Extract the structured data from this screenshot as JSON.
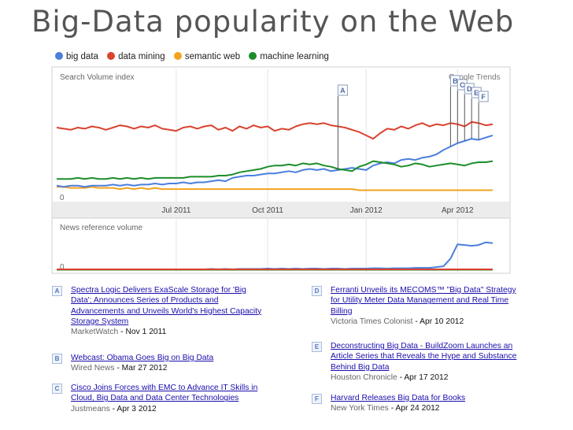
{
  "title": "Big-Data popularity on the Web",
  "colors": {
    "big_data": "#4a7fdc",
    "data_mining": "#d9432f",
    "semantic_web": "#f2a320",
    "machine_learning": "#1d8d2a",
    "grid": "#e4e4e4",
    "axis_band": "#ececec"
  },
  "chart_data": [
    {
      "type": "line",
      "ylabel": "Search Volume index",
      "watermark": "Google Trends",
      "ytick_zero": "0",
      "x_tick_labels": [
        "Jul 2011",
        "Oct 2011",
        "Jan 2012",
        "Apr 2012"
      ],
      "x_tick_weeks": [
        17,
        30,
        44,
        57
      ],
      "ylim": [
        0,
        100
      ],
      "x_weeks": 62,
      "x_start": "2011-03-06",
      "series": [
        {
          "name": "big data",
          "key": "big_data",
          "values": [
            10,
            9,
            10,
            10,
            9,
            10,
            10,
            10,
            11,
            10,
            11,
            10,
            11,
            11,
            12,
            11,
            12,
            12,
            13,
            12,
            13,
            13,
            14,
            15,
            14,
            17,
            18,
            19,
            19,
            20,
            21,
            21,
            22,
            23,
            22,
            24,
            25,
            24,
            25,
            23,
            24,
            25,
            26,
            25,
            24,
            28,
            30,
            31,
            30,
            33,
            34,
            33,
            35,
            36,
            38,
            42,
            45,
            48,
            50,
            52,
            51,
            53,
            55
          ]
        },
        {
          "name": "data mining",
          "key": "data_mining",
          "values": [
            62,
            61,
            60,
            62,
            61,
            63,
            62,
            60,
            62,
            64,
            63,
            61,
            63,
            62,
            64,
            61,
            60,
            59,
            62,
            63,
            61,
            63,
            64,
            60,
            62,
            59,
            63,
            61,
            64,
            62,
            63,
            59,
            61,
            60,
            63,
            65,
            66,
            65,
            66,
            64,
            63,
            62,
            60,
            58,
            55,
            52,
            57,
            61,
            60,
            63,
            61,
            64,
            66,
            63,
            65,
            64,
            66,
            65,
            63,
            67,
            66,
            64,
            65
          ]
        },
        {
          "name": "semantic web",
          "key": "semantic_web",
          "values": [
            9,
            9,
            8,
            8,
            8,
            9,
            8,
            8,
            8,
            7,
            8,
            7,
            8,
            7,
            8,
            7,
            7,
            7,
            7,
            7,
            7,
            7,
            7,
            7,
            7,
            7,
            7,
            7,
            7,
            7,
            7,
            7,
            7,
            7,
            7,
            7,
            7,
            7,
            7,
            7,
            7,
            7,
            7,
            6,
            6,
            6,
            6,
            6,
            6,
            6,
            6,
            6,
            6,
            6,
            6,
            6,
            6,
            6,
            6,
            6,
            6,
            6,
            6
          ]
        },
        {
          "name": "machine learning",
          "key": "machine_learning",
          "values": [
            16,
            16,
            16,
            17,
            16,
            17,
            16,
            16,
            17,
            16,
            17,
            16,
            17,
            16,
            17,
            17,
            17,
            17,
            17,
            18,
            18,
            18,
            18,
            19,
            19,
            20,
            22,
            23,
            24,
            25,
            27,
            28,
            28,
            29,
            28,
            30,
            29,
            30,
            28,
            27,
            25,
            24,
            23,
            27,
            29,
            32,
            31,
            30,
            29,
            27,
            28,
            30,
            29,
            27,
            28,
            29,
            30,
            29,
            28,
            30,
            31,
            31,
            32
          ]
        }
      ]
    },
    {
      "type": "line",
      "ylabel": "News reference volume",
      "ytick_zero": "0",
      "ylim": [
        0,
        100
      ],
      "series": [
        {
          "name": "big data",
          "key": "big_data",
          "values": [
            1,
            1,
            1,
            1,
            2,
            1,
            2,
            1,
            2,
            2,
            1,
            1,
            2,
            1,
            2,
            1,
            2,
            2,
            2,
            1,
            2,
            2,
            3,
            2,
            3,
            2,
            3,
            3,
            3,
            3,
            4,
            3,
            4,
            3,
            4,
            3,
            4,
            4,
            3,
            4,
            4,
            3,
            4,
            4,
            4,
            5,
            5,
            4,
            5,
            5,
            5,
            6,
            6,
            6,
            8,
            10,
            30,
            67,
            65,
            63,
            65,
            72,
            70
          ]
        },
        {
          "name": "data mining",
          "key": "data_mining",
          "values": [
            2,
            2,
            2,
            2,
            2,
            2,
            2,
            2,
            2,
            2,
            2,
            2,
            2,
            2,
            2,
            2,
            2,
            2,
            2,
            2,
            2,
            2,
            2,
            2,
            2,
            2,
            2,
            2,
            2,
            2,
            2,
            2,
            2,
            2,
            2,
            2,
            2,
            2,
            2,
            2,
            2,
            2,
            2,
            2,
            2,
            2,
            2,
            2,
            2,
            2,
            2,
            2,
            2,
            2,
            2,
            2,
            2,
            2,
            2,
            2,
            2,
            2,
            2
          ]
        },
        {
          "name": "machine learning",
          "key": "machine_learning",
          "values": [
            1,
            1,
            1,
            1,
            1,
            1,
            1,
            1,
            1,
            1,
            1,
            1,
            1,
            1,
            1,
            1,
            1,
            1,
            1,
            1,
            1,
            1,
            1,
            1,
            1,
            1,
            1,
            1,
            1,
            1,
            1,
            1,
            1,
            1,
            1,
            1,
            1,
            1,
            1,
            1,
            1,
            1,
            1,
            1,
            1,
            1,
            1,
            1,
            1,
            1,
            1,
            1,
            1,
            1,
            1,
            1,
            1,
            1,
            1,
            1,
            1,
            1,
            1
          ]
        }
      ]
    }
  ],
  "annotation_flags": [
    {
      "letter": "A",
      "week": 40
    },
    {
      "letter": "B",
      "week": 56
    },
    {
      "letter": "C",
      "week": 57
    },
    {
      "letter": "D",
      "week": 58
    },
    {
      "letter": "E",
      "week": 59
    },
    {
      "letter": "F",
      "week": 60
    }
  ],
  "news": [
    {
      "letter": "A",
      "headline": "Spectra Logic Delivers ExaScale Storage for 'Big Data'; Announces Series of Products and Advancements and Unveils World's Highest Capacity Storage System",
      "source": "MarketWatch",
      "date": "Nov 1 2011"
    },
    {
      "letter": "B",
      "headline": "Webcast: Obama Goes Big on Big Data",
      "source": "Wired News",
      "date": "Mar 27 2012"
    },
    {
      "letter": "C",
      "headline": "Cisco Joins Forces with EMC to Advance IT Skills in Cloud, Big Data and Data Center Technologies",
      "source": "Justmeans",
      "date": "Apr 3 2012"
    },
    {
      "letter": "D",
      "headline": "Ferranti Unveils its MECOMS™ \"Big Data\" Strategy for Utility Meter Data Management and Real Time Billing",
      "source": "Victoria Times Colonist",
      "date": "Apr 10 2012"
    },
    {
      "letter": "E",
      "headline": "Deconstructing Big Data - BuildZoom Launches an Article Series that Reveals the Hype and Substance Behind Big Data",
      "source": "Houston Chronicle",
      "date": "Apr 17 2012"
    },
    {
      "letter": "F",
      "headline": "Harvard Releases Big Data for Books",
      "source": "New York Times",
      "date": "Apr 24 2012"
    }
  ]
}
